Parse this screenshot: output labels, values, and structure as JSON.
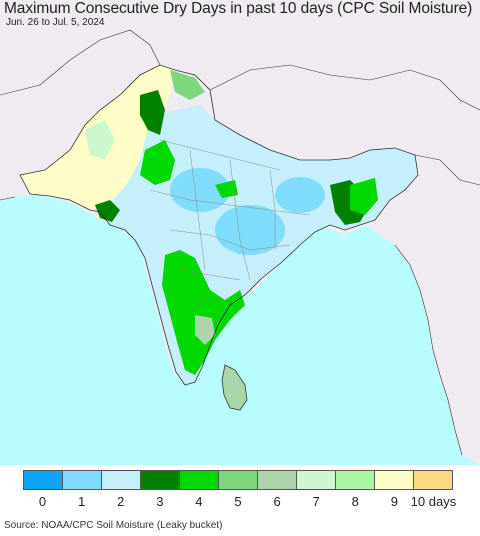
{
  "title": "Maximum Consecutive Dry Days in past 10 days (CPC Soil Moisture)",
  "date_range": "Jun. 26 to Jul. 5, 2024",
  "source": "Source: NOAA/CPC Soil Moisture (Leaky bucket)",
  "legend": {
    "labels": [
      "0",
      "1",
      "2",
      "3",
      "4",
      "5",
      "6",
      "7",
      "8",
      "9",
      "10 days"
    ],
    "colors": [
      "#0aa5f5",
      "#7fdcfa",
      "#c6effc",
      "#008200",
      "#00d800",
      "#7ed67e",
      "#aad6aa",
      "#cdf7cd",
      "#aaf7a3",
      "#fffec8",
      "#fdd882"
    ]
  },
  "map_colors": {
    "ocean": "#b8fcfe",
    "outside_land": "#efebf0",
    "border": "#333333",
    "state_line": "#888888"
  }
}
